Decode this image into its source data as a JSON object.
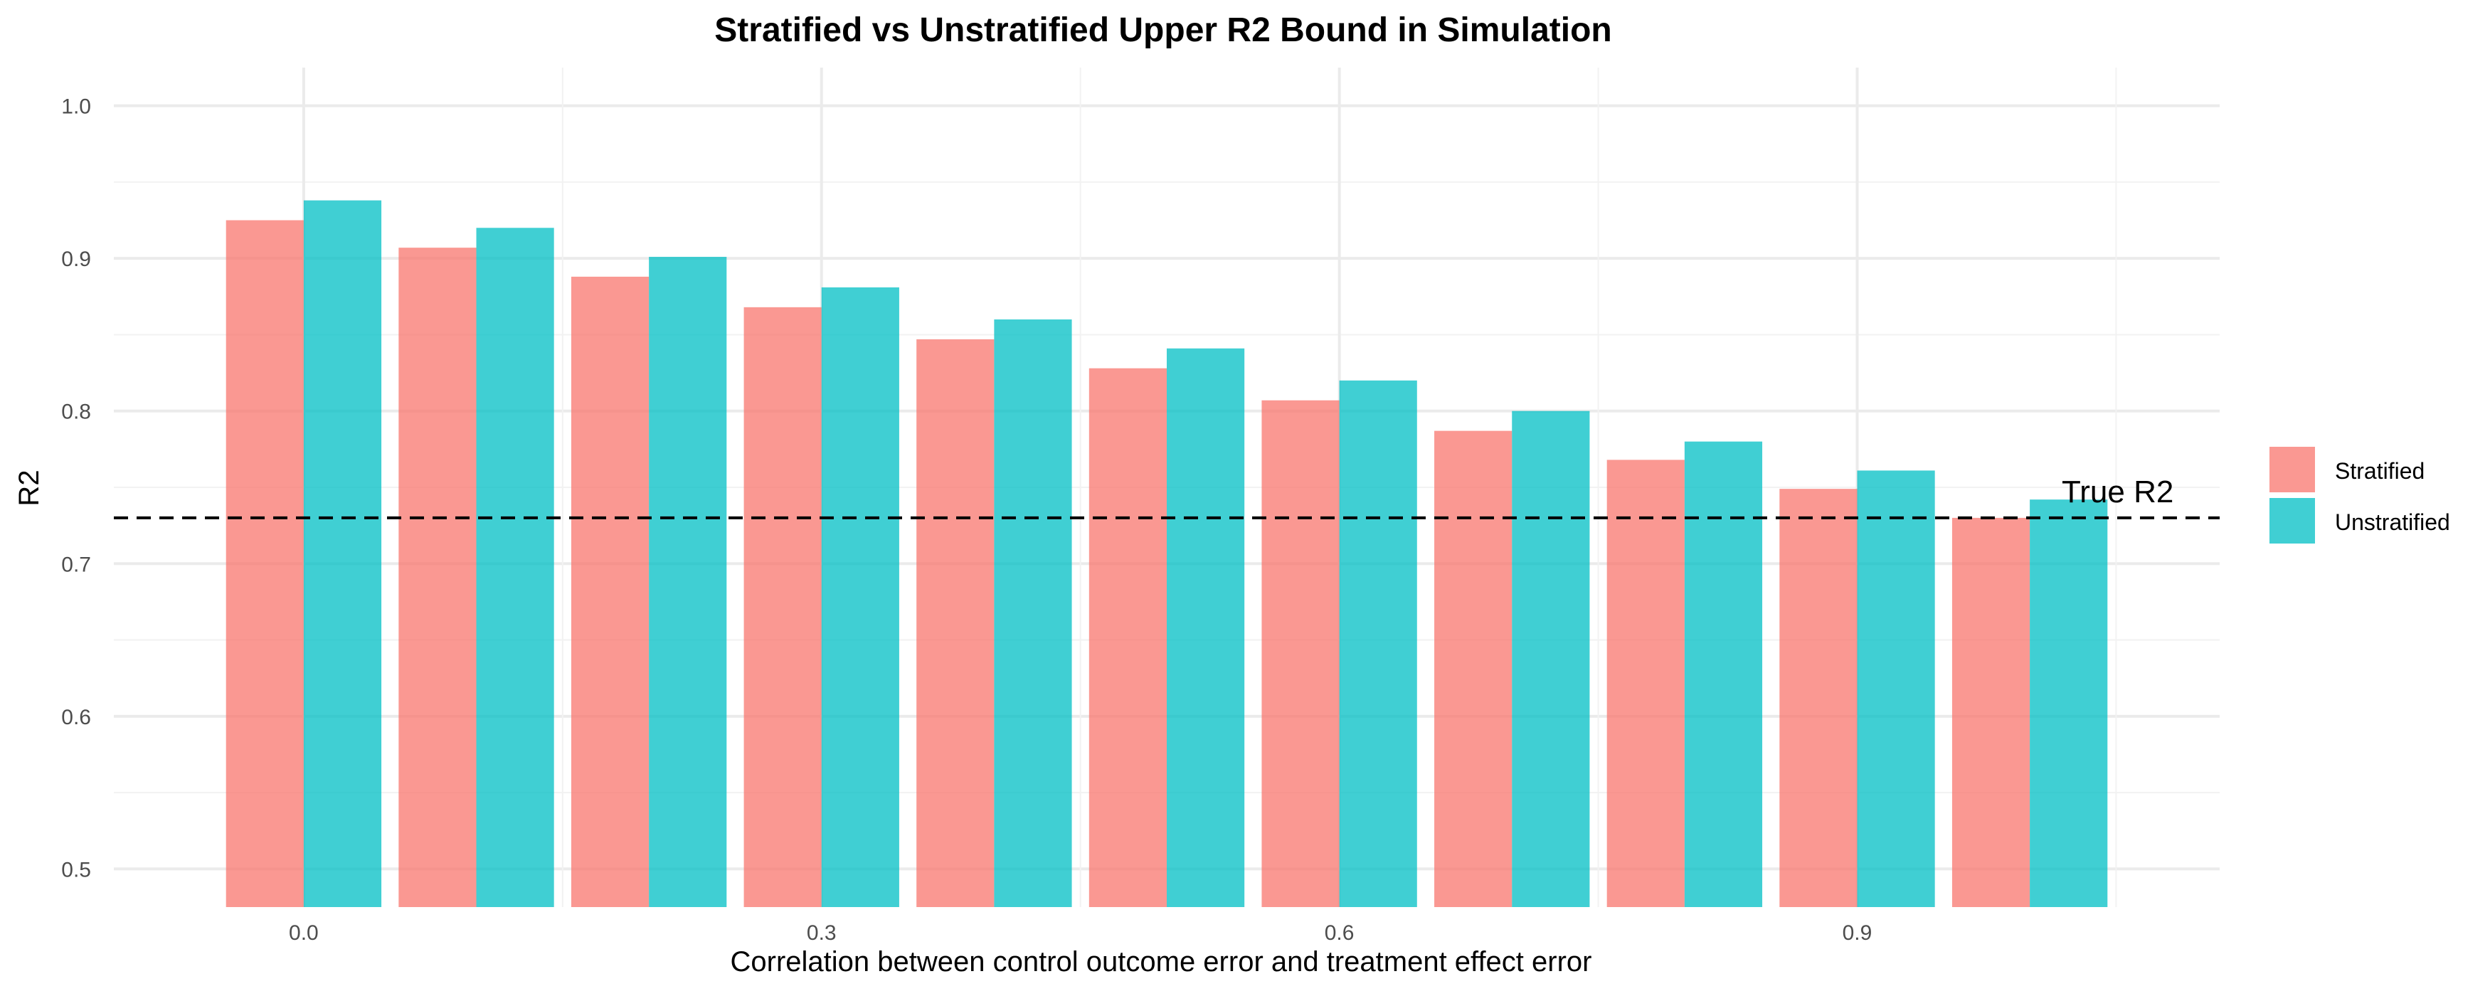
{
  "chart_data": {
    "type": "bar",
    "title": "Stratified vs Unstratified Upper R2 Bound in Simulation",
    "xlabel": "Correlation between control outcome error and treatment effect error",
    "ylabel": "R2",
    "x": [
      0.0,
      0.1,
      0.2,
      0.3,
      0.4,
      0.5,
      0.6,
      0.7,
      0.8,
      0.9,
      1.0
    ],
    "x_tick_labels": [
      "0.0",
      "0.3",
      "0.6",
      "0.9"
    ],
    "y_tick_labels": [
      "0.5",
      "0.6",
      "0.7",
      "0.8",
      "0.9",
      "1.0"
    ],
    "ylim": [
      0.475,
      1.025
    ],
    "grid": true,
    "legend_position": "right",
    "series": [
      {
        "name": "Stratified",
        "color": "#F8766D",
        "values": [
          0.925,
          0.907,
          0.888,
          0.868,
          0.847,
          0.828,
          0.807,
          0.787,
          0.768,
          0.749,
          0.73
        ]
      },
      {
        "name": "Unstratified",
        "color": "#00BFC4",
        "values": [
          0.938,
          0.92,
          0.901,
          0.881,
          0.86,
          0.841,
          0.82,
          0.8,
          0.78,
          0.761,
          0.742
        ]
      }
    ],
    "reference_line": {
      "value": 0.73,
      "label": "True R2",
      "style": "dashed",
      "color": "#000000"
    }
  }
}
